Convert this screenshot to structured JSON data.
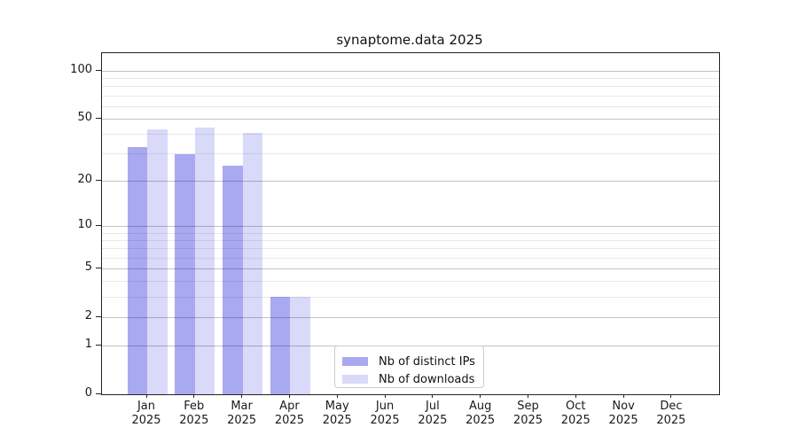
{
  "chart_data": {
    "type": "bar",
    "title": "synaptome.data 2025",
    "categories": [
      "Jan",
      "Feb",
      "Mar",
      "Apr",
      "May",
      "Jun",
      "Jul",
      "Aug",
      "Sep",
      "Oct",
      "Nov",
      "Dec"
    ],
    "x_sublabel": "2025",
    "series": [
      {
        "name": "Nb of distinct IPs",
        "color": "#a9a9f2",
        "values": [
          33,
          30,
          25,
          3,
          0,
          0,
          0,
          0,
          0,
          0,
          0,
          0
        ]
      },
      {
        "name": "Nb of downloads",
        "color": "#d9d9fa",
        "values": [
          43,
          44,
          41,
          3,
          0,
          0,
          0,
          0,
          0,
          0,
          0,
          0
        ]
      }
    ],
    "yscale": "log1p",
    "ylim": [
      0,
      129
    ],
    "y_major_ticks": [
      0,
      1,
      2,
      5,
      10,
      20,
      50,
      100
    ],
    "y_minor_gridlines": [
      3,
      4,
      6,
      7,
      8,
      9,
      30,
      40,
      60,
      70,
      80,
      90
    ],
    "grid": true,
    "legend_position": "lower-center",
    "colors": {
      "major_grid": "#c2c2c2",
      "minor_grid": "#e9e9e9",
      "axis": "#222222",
      "text": "#1a1a1a"
    }
  },
  "legend": {
    "items": [
      {
        "label": "Nb of distinct IPs"
      },
      {
        "label": "Nb of downloads"
      }
    ]
  }
}
